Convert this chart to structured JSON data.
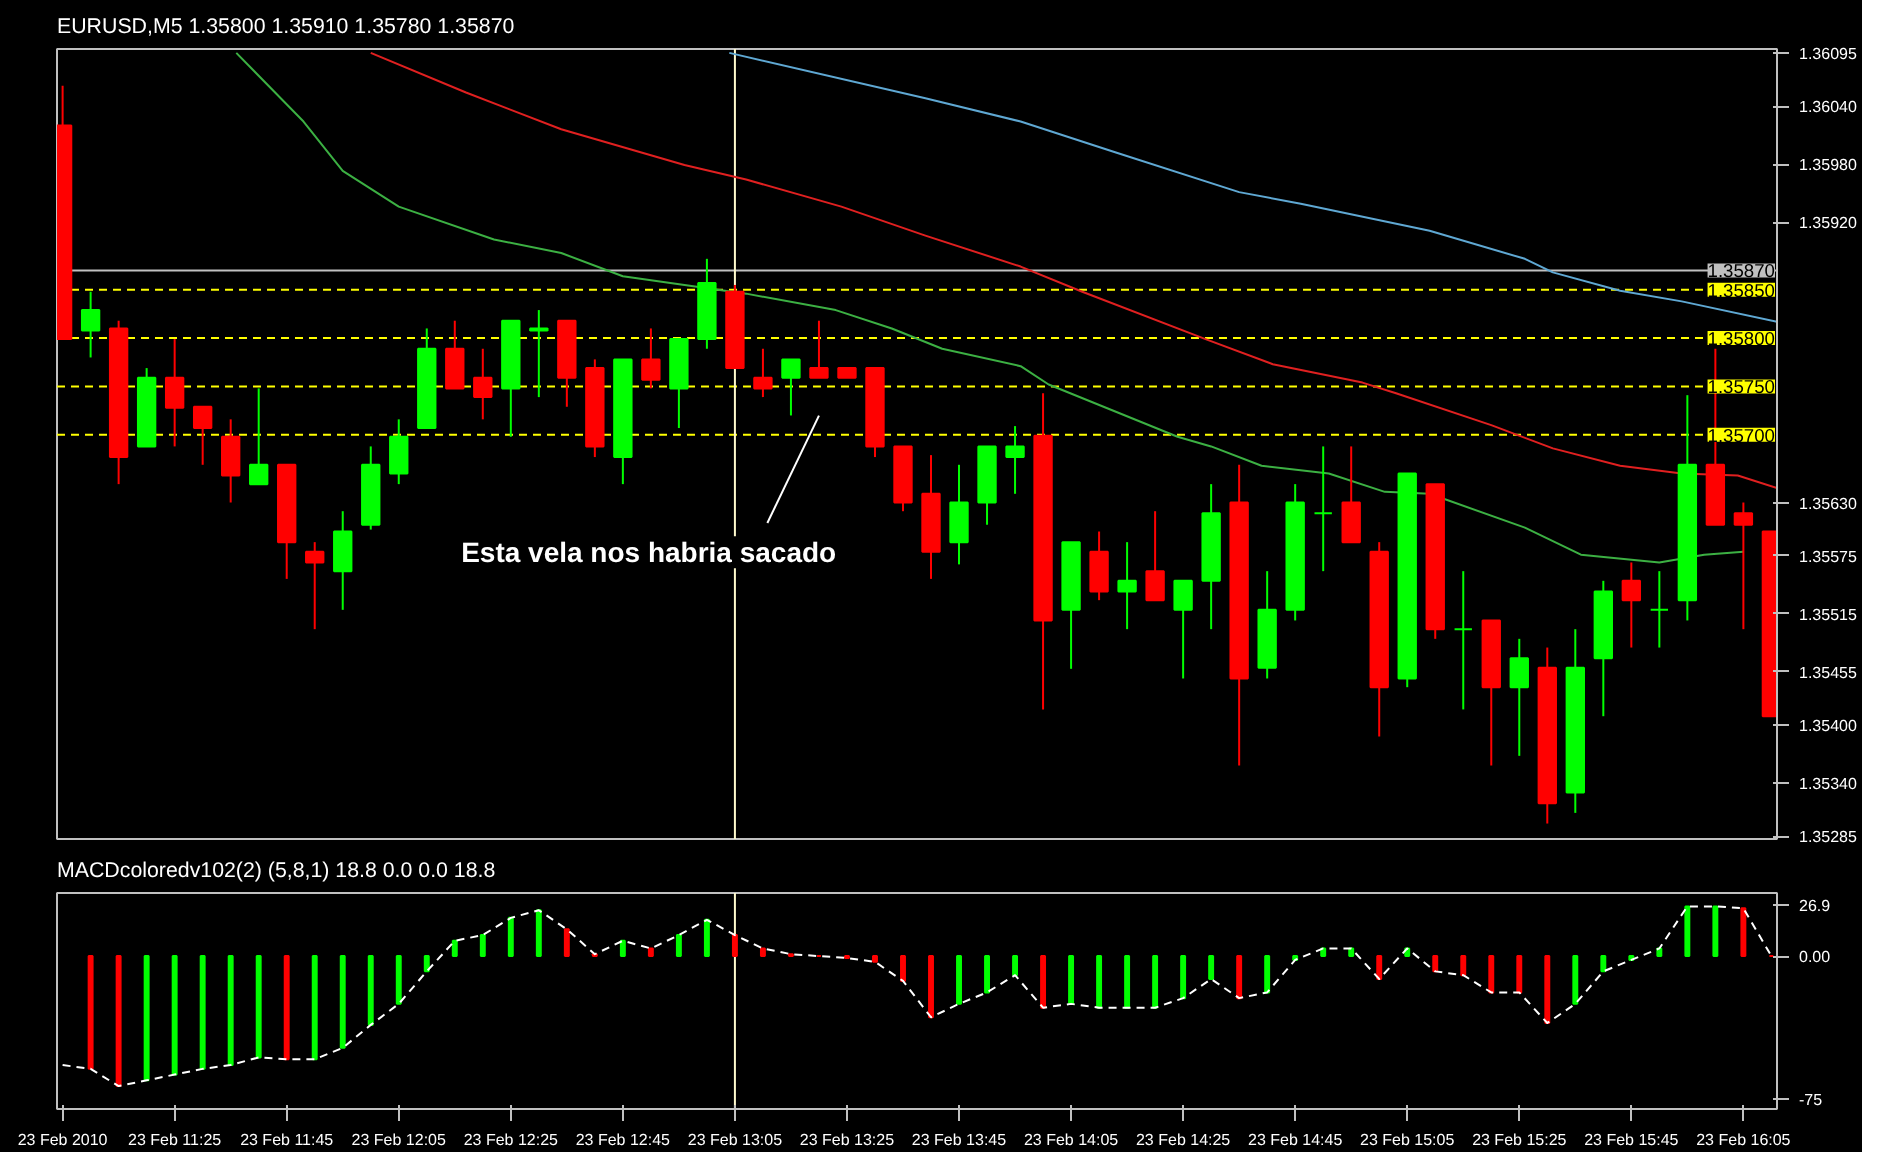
{
  "chart_data": [
    {
      "type": "candlestick",
      "title": "EURUSD,M5  1.35800 1.35910 1.35780 1.35870",
      "x": [
        "2010-02-23T11:05",
        "2010-02-23T11:10",
        "2010-02-23T11:15",
        "2010-02-23T11:20",
        "2010-02-23T11:25",
        "2010-02-23T11:30",
        "2010-02-23T11:35",
        "2010-02-23T11:40",
        "2010-02-23T11:45",
        "2010-02-23T11:50",
        "2010-02-23T11:55",
        "2010-02-23T12:00",
        "2010-02-23T12:05",
        "2010-02-23T12:10",
        "2010-02-23T12:15",
        "2010-02-23T12:20",
        "2010-02-23T12:25",
        "2010-02-23T12:30",
        "2010-02-23T12:35",
        "2010-02-23T12:40",
        "2010-02-23T12:45",
        "2010-02-23T12:50",
        "2010-02-23T12:55",
        "2010-02-23T13:00",
        "2010-02-23T13:05",
        "2010-02-23T13:10",
        "2010-02-23T13:15",
        "2010-02-23T13:20",
        "2010-02-23T13:25",
        "2010-02-23T13:30",
        "2010-02-23T13:35",
        "2010-02-23T13:40",
        "2010-02-23T13:45",
        "2010-02-23T13:50",
        "2010-02-23T13:55",
        "2010-02-23T14:00",
        "2010-02-23T14:05",
        "2010-02-23T14:10",
        "2010-02-23T14:15",
        "2010-02-23T14:20",
        "2010-02-23T14:25",
        "2010-02-23T14:30",
        "2010-02-23T14:35",
        "2010-02-23T14:40",
        "2010-02-23T14:45",
        "2010-02-23T14:50",
        "2010-02-23T14:55",
        "2010-02-23T15:00",
        "2010-02-23T15:05",
        "2010-02-23T15:10",
        "2010-02-23T15:15",
        "2010-02-23T15:20",
        "2010-02-23T15:25",
        "2010-02-23T15:30",
        "2010-02-23T15:35",
        "2010-02-23T15:40",
        "2010-02-23T15:45",
        "2010-02-23T15:50",
        "2010-02-23T15:55",
        "2010-02-23T16:00",
        "2010-02-23T16:05",
        "2010-02-23T16:10"
      ],
      "ohlc": [
        [
          1.3602,
          1.36061,
          1.35799,
          1.35799
        ],
        [
          1.35808,
          1.35848,
          1.3578,
          1.35829
        ],
        [
          1.3581,
          1.35818,
          1.35649,
          1.35677
        ],
        [
          1.35688,
          1.35769,
          1.35688,
          1.35759
        ],
        [
          1.35759,
          1.35799,
          1.35688,
          1.35728
        ],
        [
          1.35729,
          1.35729,
          1.35669,
          1.35707
        ],
        [
          1.35698,
          1.35716,
          1.3563,
          1.35658
        ],
        [
          1.35649,
          1.35748,
          1.35649,
          1.35669
        ],
        [
          1.35669,
          1.35669,
          1.35551,
          1.35589
        ],
        [
          1.35579,
          1.35589,
          1.35499,
          1.35568
        ],
        [
          1.35559,
          1.35621,
          1.35519,
          1.356
        ],
        [
          1.35607,
          1.35688,
          1.35602,
          1.35669
        ],
        [
          1.3566,
          1.35716,
          1.35649,
          1.35698
        ],
        [
          1.35707,
          1.3581,
          1.35707,
          1.35789
        ],
        [
          1.35789,
          1.35818,
          1.35748,
          1.35748
        ],
        [
          1.35759,
          1.35789,
          1.35716,
          1.35739
        ],
        [
          1.35748,
          1.35818,
          1.35698,
          1.35818
        ],
        [
          1.35808,
          1.35829,
          1.35739,
          1.3581
        ],
        [
          1.35818,
          1.35818,
          1.35729,
          1.35759
        ],
        [
          1.35769,
          1.35778,
          1.35677,
          1.35688
        ],
        [
          1.35677,
          1.35778,
          1.35649,
          1.35778
        ],
        [
          1.35778,
          1.3581,
          1.35748,
          1.35757
        ],
        [
          1.35748,
          1.35799,
          1.35707,
          1.35799
        ],
        [
          1.35799,
          1.35882,
          1.35789,
          1.35857
        ],
        [
          1.35848,
          1.35855,
          1.35769,
          1.35769
        ],
        [
          1.35759,
          1.35789,
          1.35739,
          1.35748
        ],
        [
          1.35759,
          1.35778,
          1.3572,
          1.35778
        ],
        [
          1.35769,
          1.35818,
          1.35759,
          1.35759
        ],
        [
          1.35769,
          1.35769,
          1.35759,
          1.35759
        ],
        [
          1.35769,
          1.35769,
          1.35677,
          1.35688
        ],
        [
          1.35688,
          1.35688,
          1.35621,
          1.3563
        ],
        [
          1.35639,
          1.35679,
          1.35551,
          1.35579
        ],
        [
          1.35589,
          1.35669,
          1.35566,
          1.3563
        ],
        [
          1.3563,
          1.35688,
          1.35607,
          1.35688
        ],
        [
          1.35677,
          1.35709,
          1.35639,
          1.35688
        ],
        [
          1.35699,
          1.35743,
          1.35416,
          1.35508
        ],
        [
          1.35519,
          1.35589,
          1.35458,
          1.35589
        ],
        [
          1.35579,
          1.356,
          1.35529,
          1.35538
        ],
        [
          1.35538,
          1.35589,
          1.35499,
          1.35549
        ],
        [
          1.35559,
          1.35621,
          1.35529,
          1.35529
        ],
        [
          1.35519,
          1.35549,
          1.35448,
          1.35549
        ],
        [
          1.35549,
          1.35649,
          1.35499,
          1.35619
        ],
        [
          1.3563,
          1.35669,
          1.35358,
          1.35448
        ],
        [
          1.35459,
          1.35559,
          1.35448,
          1.35519
        ],
        [
          1.35519,
          1.35649,
          1.35508,
          1.3563
        ],
        [
          1.35619,
          1.35688,
          1.35559,
          1.35619
        ],
        [
          1.3563,
          1.35688,
          1.35589,
          1.35589
        ],
        [
          1.35579,
          1.35589,
          1.35388,
          1.35439
        ],
        [
          1.35448,
          1.3566,
          1.35439,
          1.3566
        ],
        [
          1.35649,
          1.35649,
          1.35489,
          1.35499
        ],
        [
          1.35499,
          1.35559,
          1.35416,
          1.35499
        ],
        [
          1.35508,
          1.35508,
          1.35358,
          1.35439
        ],
        [
          1.35439,
          1.35489,
          1.35368,
          1.35469
        ],
        [
          1.35459,
          1.3548,
          1.35298,
          1.35319
        ],
        [
          1.3533,
          1.35499,
          1.35309,
          1.35459
        ],
        [
          1.35469,
          1.35549,
          1.35409,
          1.35538
        ],
        [
          1.35549,
          1.35568,
          1.3548,
          1.35529
        ],
        [
          1.35519,
          1.35559,
          1.3548,
          1.35519
        ],
        [
          1.35529,
          1.35741,
          1.35508,
          1.35669
        ],
        [
          1.35669,
          1.35789,
          1.35607,
          1.35607
        ],
        [
          1.35619,
          1.3563,
          1.35499,
          1.35607
        ],
        [
          1.356,
          1.356,
          1.35409,
          1.35409
        ]
      ],
      "colors": [
        "#ff0000",
        "#00ff00",
        "#ff0000",
        "#00ff00",
        "#ff0000",
        "#ff0000",
        "#ff0000",
        "#00ff00",
        "#ff0000",
        "#ff0000",
        "#00ff00",
        "#00ff00",
        "#00ff00",
        "#00ff00",
        "#ff0000",
        "#ff0000",
        "#00ff00",
        "#00ff00",
        "#ff0000",
        "#ff0000",
        "#00ff00",
        "#ff0000",
        "#00ff00",
        "#00ff00",
        "#ff0000",
        "#ff0000",
        "#00ff00",
        "#ff0000",
        "#ff0000",
        "#ff0000",
        "#ff0000",
        "#ff0000",
        "#00ff00",
        "#00ff00",
        "#00ff00",
        "#ff0000",
        "#00ff00",
        "#ff0000",
        "#00ff00",
        "#ff0000",
        "#00ff00",
        "#00ff00",
        "#ff0000",
        "#00ff00",
        "#00ff00",
        "#00ff00",
        "#ff0000",
        "#ff0000",
        "#00ff00",
        "#ff0000",
        "#00ff00",
        "#ff0000",
        "#00ff00",
        "#ff0000",
        "#00ff00",
        "#00ff00",
        "#ff0000",
        "#00ff00",
        "#00ff00",
        "#ff0000",
        "#ff0000",
        "#ff0000"
      ],
      "series": [
        {
          "type": "line",
          "color": "#3cb043",
          "x": [
            "2010-02-23T11:36",
            "2010-02-23T11:48",
            "2010-02-23T11:55",
            "2010-02-23T12:05",
            "2010-02-23T12:22",
            "2010-02-23T12:34",
            "2010-02-23T12:45",
            "2010-02-23T12:56",
            "2010-02-23T13:07",
            "2010-02-23T13:23",
            "2010-02-23T13:33",
            "2010-02-23T13:42",
            "2010-02-23T13:56",
            "2010-02-23T14:01",
            "2010-02-23T14:24",
            "2010-02-23T14:30",
            "2010-02-23T14:39",
            "2010-02-23T14:51",
            "2010-02-23T15:01",
            "2010-02-23T15:09",
            "2010-02-23T15:26",
            "2010-02-23T15:36",
            "2010-02-23T15:50",
            "2010-02-23T15:58",
            "2010-02-23T16:05"
          ],
          "values": [
            1.36095,
            1.36024,
            1.35973,
            1.35936,
            1.35902,
            1.35888,
            1.35864,
            1.35855,
            1.35846,
            1.35829,
            1.3581,
            1.35789,
            1.35771,
            1.35752,
            1.35698,
            1.35688,
            1.35668,
            1.3566,
            1.35641,
            1.35639,
            1.35604,
            1.35576,
            1.35568,
            1.35576,
            1.35579
          ]
        },
        {
          "type": "line",
          "color": "#e02020",
          "x": [
            "2010-02-23T12:00",
            "2010-02-23T12:17",
            "2010-02-23T12:34",
            "2010-02-23T12:56",
            "2010-02-23T13:07",
            "2010-02-23T13:24",
            "2010-02-23T13:39",
            "2010-02-23T13:56",
            "2010-02-23T14:07",
            "2010-02-23T14:29",
            "2010-02-23T14:41",
            "2010-02-23T14:57",
            "2010-02-23T15:03",
            "2010-02-23T15:20",
            "2010-02-23T15:31",
            "2010-02-23T15:43",
            "2010-02-23T15:54",
            "2010-02-23T16:04",
            "2010-02-23T16:11"
          ],
          "values": [
            1.36095,
            1.36054,
            1.36016,
            1.35979,
            1.35964,
            1.35936,
            1.35906,
            1.35874,
            1.35848,
            1.35799,
            1.35773,
            1.35754,
            1.35743,
            1.3571,
            1.35686,
            1.35668,
            1.3566,
            1.35658,
            1.35645
          ]
        },
        {
          "type": "line",
          "color": "#5fa8d3",
          "x": [
            "2010-02-23T13:04",
            "2010-02-23T13:39",
            "2010-02-23T13:56",
            "2010-02-23T14:13",
            "2010-02-23T14:35",
            "2010-02-23T14:46",
            "2010-02-23T15:09",
            "2010-02-23T15:26",
            "2010-02-23T15:31",
            "2010-02-23T15:43",
            "2010-02-23T15:54",
            "2010-02-23T16:11"
          ],
          "values": [
            1.36095,
            1.36048,
            1.36024,
            1.35992,
            1.35951,
            1.35939,
            1.35911,
            1.35882,
            1.35868,
            1.35849,
            1.35838,
            1.35817
          ]
        }
      ],
      "xlim": [
        "2010-02-23T11:04",
        "2010-02-23T16:11"
      ],
      "ylim": [
        1.35282,
        1.36099
      ],
      "yticks": [
        1.36095,
        {
          "value": 1.3604,
          "label": "1.36040"
        },
        {
          "value": 1.3598,
          "label": "1.35980"
        },
        {
          "value": 1.3592,
          "label": "1.35920"
        },
        {
          "value": 1.3563,
          "label": "1.35630"
        },
        1.35575,
        1.35515,
        1.35455,
        {
          "value": 1.354,
          "label": "1.35400"
        },
        {
          "value": 1.3534,
          "label": "1.35340"
        },
        1.35285
      ],
      "tick_labels": "y",
      "ref_lines": [
        {
          "axis": "y",
          "value": 1.3587,
          "label": "1.35870",
          "color": "#c0c0c0",
          "line_style": "solid"
        },
        {
          "axis": "y",
          "value": 1.3585,
          "label": "1.35850",
          "color": "#ffff00",
          "line_style": "dashed"
        },
        {
          "axis": "y",
          "value": 1.358,
          "label": "1.35800",
          "color": "#ffff00",
          "line_style": "dashed"
        },
        {
          "axis": "y",
          "value": 1.3575,
          "label": "1.35750",
          "color": "#ffff00",
          "line_style": "dashed"
        },
        {
          "axis": "y",
          "value": 1.357,
          "label": "1.35700",
          "color": "#ffff00",
          "line_style": "dashed"
        },
        {
          "axis": "x",
          "value": "2010-02-23T13:05",
          "color": "#fffacd",
          "line_style": "solid"
        }
      ],
      "annotations": [
        "Esta vela nos habria sacado"
      ]
    },
    {
      "type": "bar",
      "title": "MACDcoloredv102(2) (5,8,1) 18.8 0.0 0.0 18.8",
      "x": [
        "2010-02-23T11:05",
        "2010-02-23T11:10",
        "2010-02-23T11:15",
        "2010-02-23T11:20",
        "2010-02-23T11:25",
        "2010-02-23T11:30",
        "2010-02-23T11:35",
        "2010-02-23T11:40",
        "2010-02-23T11:45",
        "2010-02-23T11:50",
        "2010-02-23T11:55",
        "2010-02-23T12:00",
        "2010-02-23T12:05",
        "2010-02-23T12:10",
        "2010-02-23T12:15",
        "2010-02-23T12:20",
        "2010-02-23T12:25",
        "2010-02-23T12:30",
        "2010-02-23T12:35",
        "2010-02-23T12:40",
        "2010-02-23T12:45",
        "2010-02-23T12:50",
        "2010-02-23T12:55",
        "2010-02-23T13:00",
        "2010-02-23T13:05",
        "2010-02-23T13:10",
        "2010-02-23T13:15",
        "2010-02-23T13:20",
        "2010-02-23T13:25",
        "2010-02-23T13:30",
        "2010-02-23T13:35",
        "2010-02-23T13:40",
        "2010-02-23T13:45",
        "2010-02-23T13:50",
        "2010-02-23T13:55",
        "2010-02-23T14:00",
        "2010-02-23T14:05",
        "2010-02-23T14:10",
        "2010-02-23T14:15",
        "2010-02-23T14:20",
        "2010-02-23T14:25",
        "2010-02-23T14:30",
        "2010-02-23T14:35",
        "2010-02-23T14:40",
        "2010-02-23T14:45",
        "2010-02-23T14:50",
        "2010-02-23T14:55",
        "2010-02-23T15:00",
        "2010-02-23T15:05",
        "2010-02-23T15:10",
        "2010-02-23T15:15",
        "2010-02-23T15:20",
        "2010-02-23T15:25",
        "2010-02-23T15:30",
        "2010-02-23T15:35",
        "2010-02-23T15:40",
        "2010-02-23T15:45",
        "2010-02-23T15:50",
        "2010-02-23T15:55",
        "2010-02-23T16:00",
        "2010-02-23T16:05",
        "2010-02-23T16:10"
      ],
      "series": [
        {
          "type": "bar",
          "colors": [
            "#ff0000",
            "#ff0000",
            "#ff0000",
            "#00ff00",
            "#00ff00",
            "#00ff00",
            "#00ff00",
            "#00ff00",
            "#ff0000",
            "#00ff00",
            "#00ff00",
            "#00ff00",
            "#00ff00",
            "#00ff00",
            "#00ff00",
            "#00ff00",
            "#00ff00",
            "#00ff00",
            "#ff0000",
            "#ff0000",
            "#00ff00",
            "#ff0000",
            "#00ff00",
            "#00ff00",
            "#ff0000",
            "#ff0000",
            "#ff0000",
            "#ff0000",
            "#ff0000",
            "#ff0000",
            "#ff0000",
            "#ff0000",
            "#00ff00",
            "#00ff00",
            "#00ff00",
            "#ff0000",
            "#00ff00",
            "#00ff00",
            "#00ff00",
            "#00ff00",
            "#00ff00",
            "#00ff00",
            "#ff0000",
            "#00ff00",
            "#00ff00",
            "#00ff00",
            "#00ff00",
            "#ff0000",
            "#00ff00",
            "#ff0000",
            "#ff0000",
            "#ff0000",
            "#ff0000",
            "#ff0000",
            "#00ff00",
            "#00ff00",
            "#00ff00",
            "#00ff00",
            "#00ff00",
            "#00ff00",
            "#ff0000",
            "#ff0000"
          ],
          "values": [
            null,
            -59,
            -68,
            -65,
            -62,
            -59,
            -57,
            -53,
            -54,
            -54,
            -48,
            -36,
            -25,
            -8,
            8,
            11,
            20,
            24,
            14,
            1,
            8,
            4,
            11,
            19,
            11,
            4,
            1,
            0,
            -1,
            -3,
            -13,
            -32,
            -25,
            -19,
            -10,
            -27,
            -25,
            -27,
            -27,
            -27,
            -22,
            -12,
            -22,
            -19,
            -2,
            4,
            4,
            -12,
            4,
            -8,
            -10,
            -19,
            -19,
            -35,
            -25,
            -8,
            -2,
            4,
            26,
            26,
            25,
            0
          ]
        },
        {
          "type": "line",
          "color": "#ffffff",
          "line_style": "dashed",
          "values": [
            -57,
            -59,
            -68,
            -65,
            -62,
            -59,
            -57,
            -53,
            -54,
            -54,
            -48,
            -36,
            -25,
            -8,
            8,
            11,
            20,
            24,
            14,
            1,
            8,
            4,
            11,
            19,
            11,
            4,
            1,
            0,
            -1,
            -3,
            -13,
            -32,
            -25,
            -19,
            -10,
            -27,
            -25,
            -27,
            -27,
            -27,
            -22,
            -12,
            -22,
            -19,
            -2,
            4,
            4,
            -12,
            4,
            -8,
            -10,
            -19,
            -19,
            -35,
            -25,
            -8,
            -2,
            4,
            26,
            26,
            25,
            0
          ]
        }
      ],
      "xlim": [
        "2010-02-23T11:04",
        "2010-02-23T16:11"
      ],
      "ylim": [
        -80,
        33
      ],
      "yticks": [
        26.9,
        {
          "value": 0,
          "label": "0.00"
        },
        -75
      ],
      "xticks": [
        {
          "value": "2010-02-23T11:05",
          "label": "23 Feb 2010"
        },
        {
          "value": "2010-02-23T11:25",
          "label": "23 Feb 11:25"
        },
        {
          "value": "2010-02-23T11:45",
          "label": "23 Feb 11:45"
        },
        {
          "value": "2010-02-23T12:05",
          "label": "23 Feb 12:05"
        },
        {
          "value": "2010-02-23T12:25",
          "label": "23 Feb 12:25"
        },
        {
          "value": "2010-02-23T12:45",
          "label": "23 Feb 12:45"
        },
        {
          "value": "2010-02-23T13:05",
          "label": "23 Feb 13:05"
        },
        {
          "value": "2010-02-23T13:25",
          "label": "23 Feb 13:25"
        },
        {
          "value": "2010-02-23T13:45",
          "label": "23 Feb 13:45"
        },
        {
          "value": "2010-02-23T14:05",
          "label": "23 Feb 14:05"
        },
        {
          "value": "2010-02-23T14:25",
          "label": "23 Feb 14:25"
        },
        {
          "value": "2010-02-23T14:45",
          "label": "23 Feb 14:45"
        },
        {
          "value": "2010-02-23T15:05",
          "label": "23 Feb 15:05"
        },
        {
          "value": "2010-02-23T15:25",
          "label": "23 Feb 15:25"
        },
        {
          "value": "2010-02-23T15:45",
          "label": "23 Feb 15:45"
        },
        {
          "value": "2010-02-23T16:05",
          "label": "23 Feb 16:05"
        }
      ],
      "ref_lines": [
        {
          "axis": "x",
          "value": "2010-02-23T13:05",
          "color": "#fffacd",
          "line_style": "solid"
        }
      ]
    }
  ]
}
